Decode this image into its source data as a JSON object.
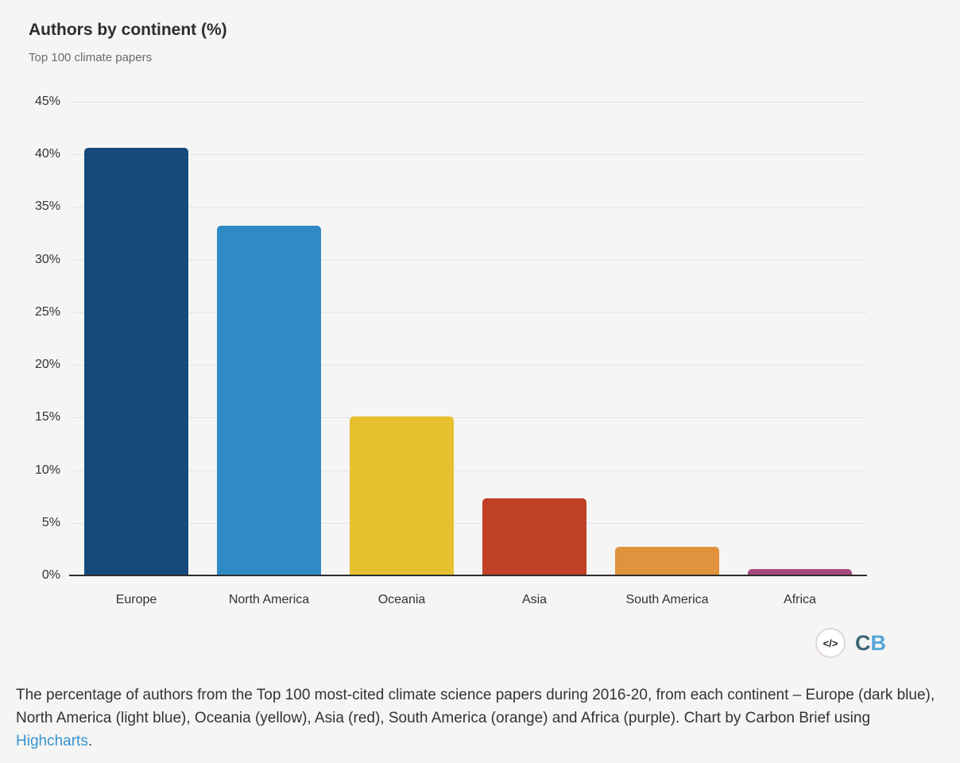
{
  "page": {
    "background": "#f5f5f4"
  },
  "chart_data": {
    "type": "bar",
    "title": "Authors by continent (%)",
    "subtitle": "Top 100 climate papers",
    "categories": [
      "Europe",
      "North America",
      "Oceania",
      "Asia",
      "South America",
      "Africa"
    ],
    "values": [
      40.6,
      33.2,
      15.1,
      7.3,
      2.7,
      0.6
    ],
    "bar_colors": [
      "#164a7a",
      "#2f8ac5",
      "#e6c02f",
      "#c04028",
      "#e0923d",
      "#a54a80"
    ],
    "xlabel": "",
    "ylabel": "",
    "ylim": [
      0,
      45
    ],
    "yticks": [
      0,
      5,
      10,
      15,
      20,
      25,
      30,
      35,
      40,
      45
    ],
    "ytick_suffix": "%",
    "grid": true,
    "legend": false
  },
  "logo": {
    "code_icon": "</>",
    "cb_first": "C",
    "cb_second": "B",
    "cb_first_color": "#3d6578",
    "cb_second_color": "#55a5d9"
  },
  "caption": {
    "text_before_link": "The percentage of authors from the Top 100 most-cited climate science papers during 2016-20, from each continent – Europe (dark blue), North America (light blue), Oceania (yellow), Asia (red), South America (orange) and Africa (purple). Chart by Carbon Brief using ",
    "link_text": "Highcharts",
    "text_after_link": ".",
    "link_color": "#3693d1"
  }
}
